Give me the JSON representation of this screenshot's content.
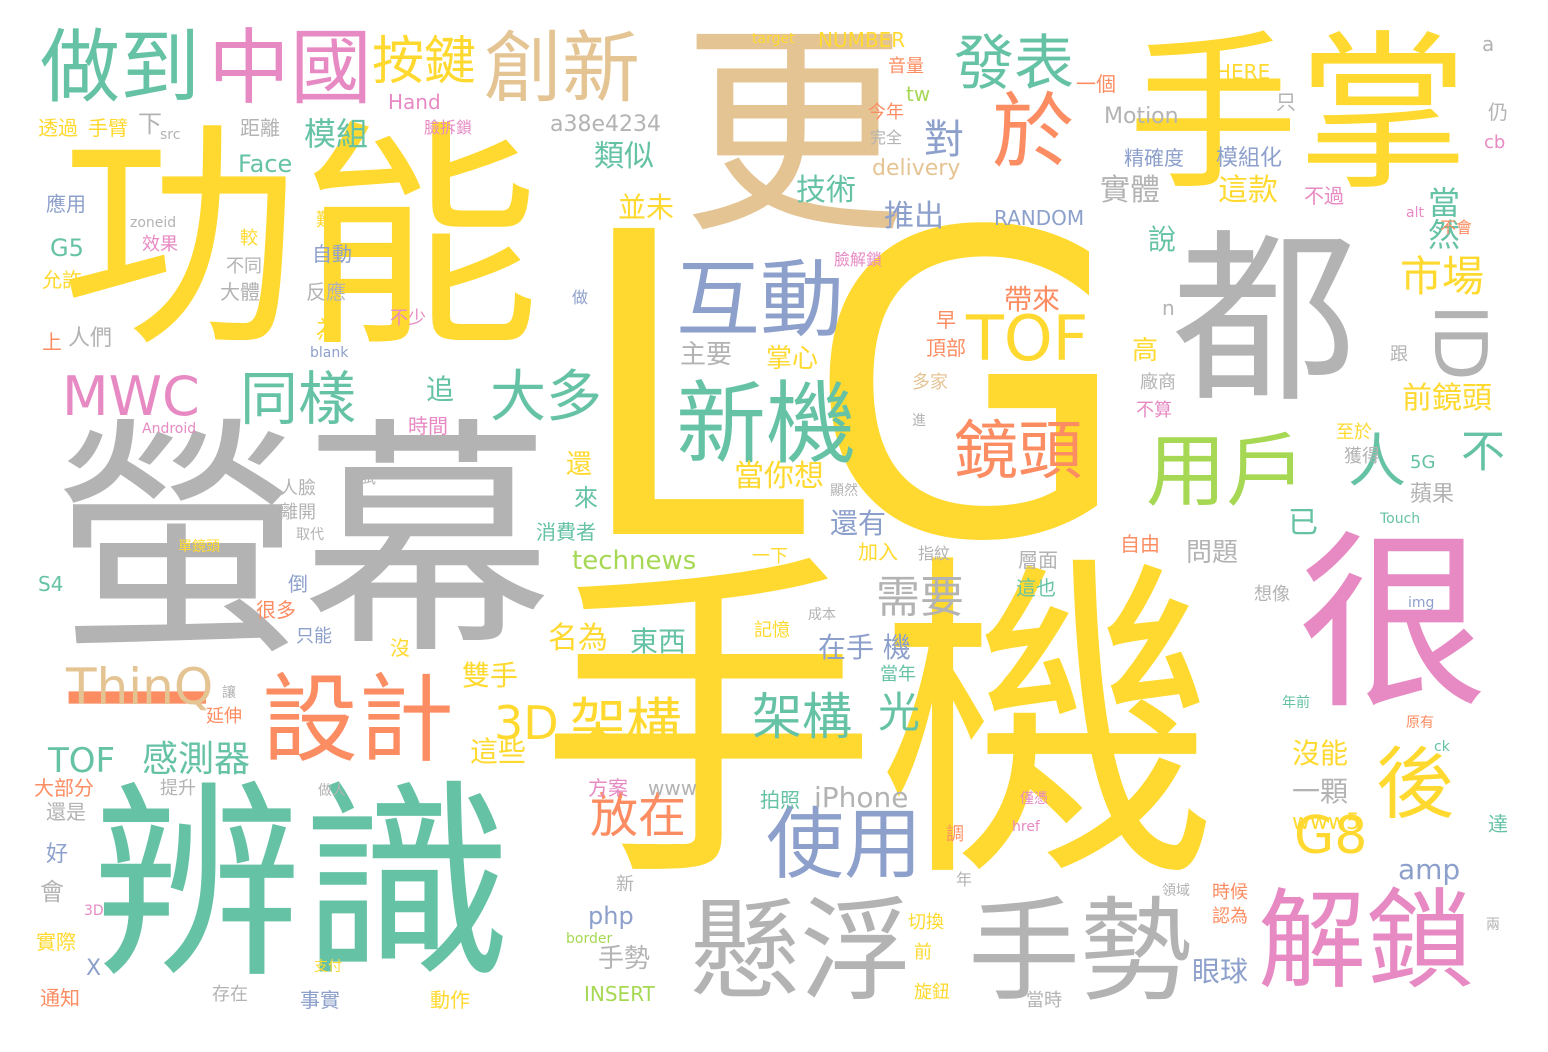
{
  "colors": {
    "yellow": "#ffd92f",
    "gray": "#b3b3b3",
    "green": "#66c2a5",
    "pink": "#e78ac3",
    "orange": "#fc8d62",
    "tan": "#e5c494",
    "blue": "#8da0cb",
    "lime": "#a6d854"
  },
  "words": {
    "lg": "LG",
    "shouji": "手機",
    "yingmu": "螢幕",
    "gongneng": "功能",
    "geng": "更",
    "shouzhang": "手掌",
    "bianshi": "辨識",
    "dou": "都",
    "hen": "很",
    "xuanfu": "懸浮",
    "shoushi": "手勢",
    "jiesuo": "解鎖",
    "zuodao": "做到",
    "zhongguo": "中國",
    "anjian": "按鍵",
    "chuangxin": "創新",
    "fabiao": "發表",
    "yuyu": "於",
    "dui": "對",
    "hudong": "互動",
    "id": "ID",
    "tof": "TOF",
    "mwc": "MWC",
    "tongyang": "同樣",
    "xinji": "新機",
    "daduo": "大多",
    "jingtou": "鏡頭",
    "yonghu": "用戶",
    "ren": "人",
    "shichang": "市場",
    "yi": "一",
    "sheji": "設計",
    "thinq": "ThinQ",
    "d3": "3D",
    "jiagou1": "架構",
    "jiagou2": "架構",
    "guang": "光",
    "hou": "後",
    "g8": "G8",
    "shiyong": "使用",
    "xuyao": "需要",
    "fangzai": "放在",
    "tofSmall": "TOF",
    "ganceqi": "感測器",
    "zaishouji": "在手 機",
    "mokuai": "模組",
    "face": "Face",
    "leisi": "類似",
    "jishu": "技術",
    "tuichu": "推出",
    "shiti": "實體",
    "zhekuan": "這款",
    "dangran": "當然",
    "bu": "不",
    "qianjingtou": "前鏡頭",
    "dangnixiang": "當你想",
    "huanyou": "還有",
    "jiaru": "加入",
    "mingwei": "名為",
    "dongxi": "東西",
    "technews": "technews",
    "shuangshou": "雙手",
    "zhexie": "這些",
    "meineng": "沒能",
    "yike": "一顆",
    "iphone": "iPhone",
    "www5": "www5",
    "amp": "amp",
    "php": "php",
    "yanqiu": "眼球",
    "insert": "INSERT",
    "dongzuo": "動作",
    "a38": "a38e4234",
    "motion": "Motion",
    "jingquedu": "精確度",
    "mokuaihua": "模組化",
    "delivery": "delivery",
    "random": "RANDOM",
    "number": "NUMBER",
    "here": "HERE",
    "hand": "Hand",
    "target": "target",
    "yinliang": "音量",
    "yige": "一個",
    "tw": "tw",
    "jinnian": "今年",
    "wanquan": "完全",
    "tongguo": "透過",
    "shoubi": "手臂",
    "xia": "下",
    "src": "src",
    "juli": "距離",
    "lianpaisuo": "臉拆鎖",
    "yingyong": "應用",
    "zoneid": "zoneid",
    "nan": "難",
    "jiao": "較",
    "zidong": "自動",
    "xiaoguo": "效果",
    "butong": "不同",
    "dati": "大體",
    "fanying": "反應",
    "yunxu": "允許",
    "g5": "G5",
    "bingwei": "並未",
    "lianjiesuo": "臉解鎖",
    "shang": "上",
    "renmen": "人們",
    "bushao": "不少",
    "blank": "blank",
    "wei": "為",
    "zhuyao": "主要",
    "zhangxin": "掌心",
    "zao": "早",
    "dingbu": "頂部",
    "gao": "高",
    "zhui": "追",
    "shijian": "時間",
    "android": "Android",
    "duojia": "多家",
    "n": "n",
    "huan": "還",
    "lai": "來",
    "xiaofeizhe": "消費者",
    "changshi": "嘗試",
    "renlian": "人臉",
    "likai": "離開",
    "qudai": "取代",
    "xianran": "顯然",
    "jin": "進",
    "wenti": "問題",
    "ziyou": "自由",
    "yixia": "一下",
    "zhiwen": "指紋",
    "cengmian": "層面",
    "zheye": "這也",
    "yi2": "已",
    "shuo": "說",
    "daile": "帶來",
    "zhiyu": "至於",
    "huode": "獲得",
    "pingguo": "蘋果",
    "g5b": "5G",
    "touch": "Touch",
    "xiangxiang": "想像",
    "img": "img",
    "nianqian": "年前",
    "yuanyou": "原有",
    "ck": "ck",
    "dangnian": "當年",
    "chengben": "成本",
    "jiyi": "記憶",
    "mei": "沒",
    "rang": "讓",
    "yanshen": "延伸",
    "henduo": "很多",
    "dao": "倒",
    "zhineng": "只能",
    "s4": "S4",
    "danjingtou": "單鏡頭",
    "dabufen": "大部分",
    "huanshi": "還是",
    "tisheng": "提升",
    "zuoren": "做人",
    "fangan": "方案",
    "www": "www",
    "paizhao": "拍照",
    "jinping": "僅憑",
    "href": "href",
    "da": "達",
    "tiao": "調",
    "nian": "年",
    "lingyu": "領域",
    "shihou": "時候",
    "renwei": "認為",
    "liang": "兩",
    "hao": "好",
    "hui": "會",
    "xin": "新",
    "d3small": "3D",
    "shiji": "實際",
    "border": "border",
    "x": "X",
    "tongzhi": "通知",
    "cunzai": "存在",
    "zhifu": "支付",
    "shishi": "事實",
    "qiehuan": "切換",
    "qian": "前",
    "xuanniu": "旋鈕",
    "dangshi": "當時",
    "shoushiSmall": "手勢",
    "zuo": "做",
    "zhi": "只",
    "a": "a",
    "reng": "仍",
    "cb": "cb",
    "buguo": "不過",
    "alt": "alt",
    "buhui": "不會",
    "gen": "跟",
    "changshang": "廠商",
    "busuan": "不算"
  }
}
